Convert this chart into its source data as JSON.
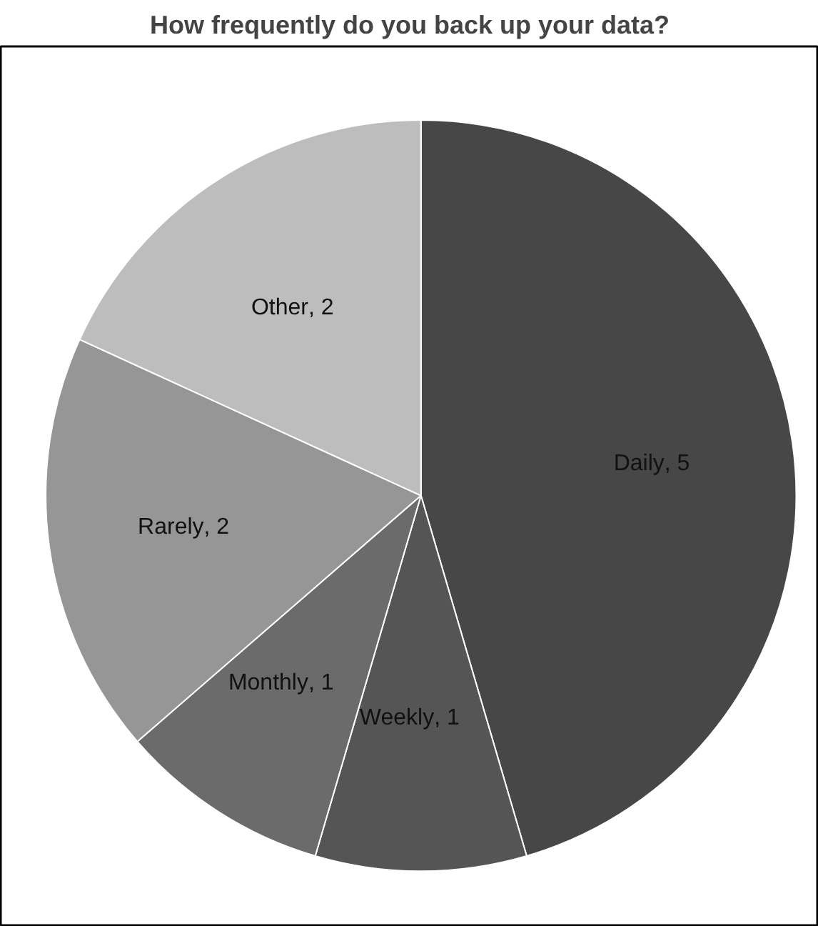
{
  "chart_data": {
    "type": "pie",
    "title": "How frequently do you back up your data?",
    "categories": [
      "Daily",
      "Weekly",
      "Monthly",
      "Rarely",
      "Other"
    ],
    "values": [
      5,
      1,
      1,
      2,
      2
    ],
    "value_labels": [
      ", 5",
      ", 1",
      ", 1",
      ", 2",
      ", 2"
    ],
    "colors": [
      "#474747",
      "#555555",
      "#6b6b6b",
      "#969696",
      "#bdbdbd"
    ],
    "legend": false
  }
}
